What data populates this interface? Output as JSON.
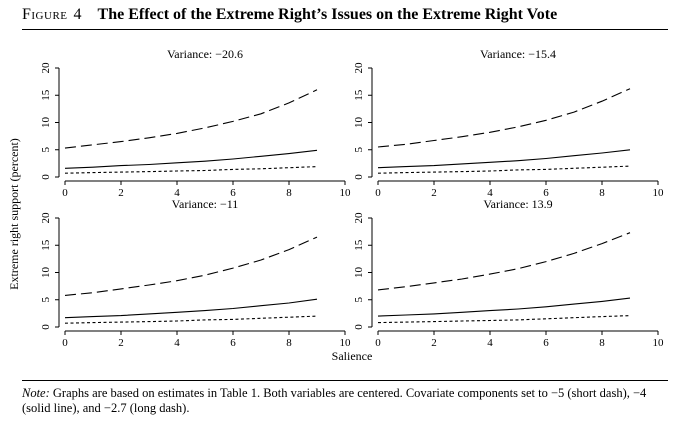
{
  "figure": {
    "label": "Figure",
    "number": "4",
    "title": "The Effect of the Extreme Right’s Issues on the Extreme Right Vote"
  },
  "note": {
    "label": "Note:",
    "text": "Graphs are based on estimates in Table 1. Both variables are centered. Covariate components set to −5 (short dash), −4 (solid line), and −2.7 (long dash)."
  },
  "chart_data": {
    "type": "line",
    "ylabel": "Extreme right support (percent)",
    "xlabel": "Salience",
    "xlim": [
      0,
      10
    ],
    "ylim": [
      0,
      20
    ],
    "xticks": [
      0,
      2,
      4,
      6,
      8,
      10
    ],
    "yticks": [
      0,
      5,
      10,
      15,
      20
    ],
    "grid": false,
    "panels": [
      {
        "title": "Variance: −20.6",
        "x": [
          0,
          1,
          2,
          3,
          4,
          5,
          6,
          7,
          8,
          9
        ],
        "series": [
          {
            "style": "short-dash",
            "values": [
              0.7,
              0.8,
              0.9,
              1.0,
              1.1,
              1.2,
              1.4,
              1.5,
              1.7,
              1.9
            ]
          },
          {
            "style": "solid",
            "values": [
              1.6,
              1.8,
              2.1,
              2.3,
              2.6,
              2.9,
              3.3,
              3.8,
              4.3,
              4.9
            ]
          },
          {
            "style": "long-dash",
            "values": [
              5.3,
              5.9,
              6.5,
              7.2,
              8.0,
              9.0,
              10.2,
              11.6,
              13.6,
              16.0
            ]
          }
        ]
      },
      {
        "title": "Variance: −15.4",
        "x": [
          0,
          1,
          2,
          3,
          4,
          5,
          6,
          7,
          8,
          9
        ],
        "series": [
          {
            "style": "short-dash",
            "values": [
              0.7,
              0.8,
              0.9,
              1.0,
              1.1,
              1.3,
              1.4,
              1.6,
              1.8,
              2.0
            ]
          },
          {
            "style": "solid",
            "values": [
              1.7,
              1.9,
              2.1,
              2.4,
              2.7,
              3.0,
              3.4,
              3.9,
              4.4,
              5.0
            ]
          },
          {
            "style": "long-dash",
            "values": [
              5.5,
              6.0,
              6.7,
              7.4,
              8.2,
              9.2,
              10.4,
              11.9,
              13.9,
              16.2
            ]
          }
        ]
      },
      {
        "title": "Variance: −11",
        "x": [
          0,
          1,
          2,
          3,
          4,
          5,
          6,
          7,
          8,
          9
        ],
        "series": [
          {
            "style": "short-dash",
            "values": [
              0.7,
              0.8,
              0.9,
              1.0,
              1.1,
              1.3,
              1.4,
              1.6,
              1.8,
              2.0
            ]
          },
          {
            "style": "solid",
            "values": [
              1.7,
              1.9,
              2.1,
              2.4,
              2.7,
              3.0,
              3.4,
              3.9,
              4.4,
              5.1
            ]
          },
          {
            "style": "long-dash",
            "values": [
              5.8,
              6.3,
              7.0,
              7.7,
              8.5,
              9.5,
              10.8,
              12.3,
              14.2,
              16.5
            ]
          }
        ]
      },
      {
        "title": "Variance: 13.9",
        "x": [
          0,
          1,
          2,
          3,
          4,
          5,
          6,
          7,
          8,
          9
        ],
        "series": [
          {
            "style": "short-dash",
            "values": [
              0.8,
              0.9,
              1.0,
              1.1,
              1.2,
              1.3,
              1.5,
              1.7,
              1.9,
              2.1
            ]
          },
          {
            "style": "solid",
            "values": [
              2.0,
              2.2,
              2.4,
              2.7,
              3.0,
              3.3,
              3.7,
              4.2,
              4.7,
              5.3
            ]
          },
          {
            "style": "long-dash",
            "values": [
              6.8,
              7.4,
              8.1,
              8.8,
              9.7,
              10.7,
              12.0,
              13.5,
              15.3,
              17.3
            ]
          }
        ]
      }
    ]
  }
}
